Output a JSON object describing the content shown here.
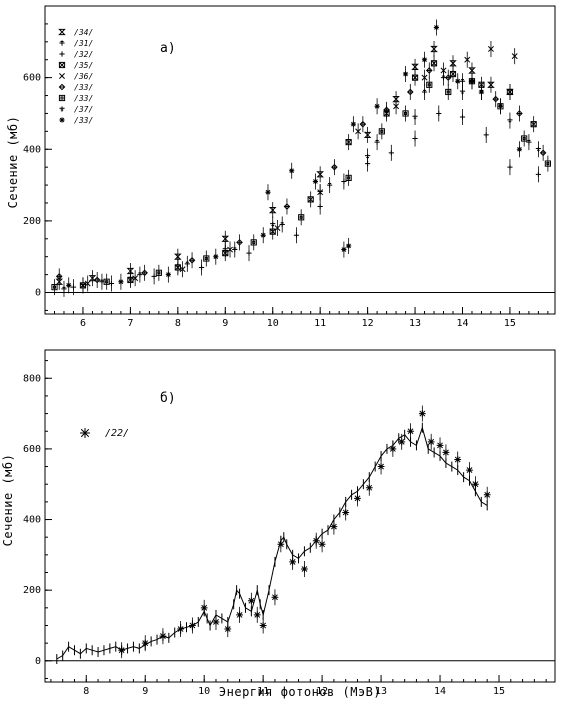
{
  "chart_data": [
    {
      "type": "scatter",
      "panel_label": "а)",
      "ylabel": "Сечение (мб)",
      "xlabel": "",
      "xlim": [
        5.2,
        15.95
      ],
      "ylim": [
        -60,
        800
      ],
      "x_ticks": [
        6,
        7,
        8,
        9,
        10,
        11,
        12,
        13,
        14,
        15
      ],
      "y_ticks": [
        0,
        200,
        400,
        600
      ],
      "grid": false,
      "legend_position": "top-left",
      "series": [
        {
          "name": "/34/",
          "marker": "hourglass",
          "x": [
            5.5,
            6.2,
            7.0,
            8.0,
            9.0,
            10.0,
            11.0,
            12.0,
            12.6,
            13.0,
            13.4,
            13.8,
            14.2,
            14.6,
            15.0
          ],
          "y": [
            30,
            40,
            60,
            100,
            150,
            230,
            330,
            440,
            540,
            630,
            680,
            640,
            620,
            580,
            560
          ]
        },
        {
          "name": "/31/",
          "marker": "plus-bar",
          "x": [
            5.6,
            6.4,
            7.2,
            8.2,
            9.2,
            10.2,
            11.2,
            12.2,
            13.2,
            13.6,
            14.0,
            14.4,
            14.8,
            15.4
          ],
          "y": [
            10,
            30,
            50,
            80,
            120,
            190,
            300,
            420,
            560,
            600,
            590,
            560,
            520,
            420
          ]
        },
        {
          "name": "/32/",
          "marker": "plus",
          "x": [
            5.8,
            6.6,
            7.5,
            8.5,
            9.5,
            10.5,
            11.0,
            11.5,
            12.0,
            12.5,
            13.0,
            13.5,
            14.0,
            14.5,
            15.0,
            15.6
          ],
          "y": [
            15,
            25,
            45,
            70,
            110,
            160,
            240,
            310,
            360,
            390,
            430,
            500,
            490,
            440,
            350,
            330
          ]
        },
        {
          "name": "/35/",
          "marker": "box-x",
          "x": [
            6.0,
            7.0,
            8.0,
            9.0,
            10.0,
            10.8,
            11.6,
            12.4,
            13.0,
            13.4,
            13.8,
            14.4,
            15.0,
            15.5
          ],
          "y": [
            20,
            35,
            70,
            110,
            170,
            260,
            420,
            500,
            600,
            640,
            610,
            580,
            560,
            470
          ]
        },
        {
          "name": "/36/",
          "marker": "x",
          "x": [
            6.1,
            7.1,
            8.1,
            9.1,
            10.1,
            11.0,
            11.8,
            12.6,
            13.2,
            13.6,
            14.1,
            14.6,
            15.1
          ],
          "y": [
            25,
            40,
            65,
            120,
            180,
            280,
            450,
            520,
            600,
            620,
            650,
            680,
            660
          ]
        },
        {
          "name": "/33/",
          "marker": "diamond",
          "x": [
            5.5,
            6.3,
            7.3,
            8.3,
            9.3,
            10.3,
            11.3,
            11.9,
            12.4,
            12.9,
            13.3,
            13.7,
            14.2,
            14.7,
            15.2,
            15.7
          ],
          "y": [
            45,
            35,
            55,
            90,
            140,
            240,
            350,
            470,
            510,
            560,
            620,
            600,
            590,
            540,
            500,
            390
          ]
        },
        {
          "name": "/33/",
          "marker": "square",
          "x": [
            5.4,
            6.5,
            7.6,
            8.6,
            9.6,
            10.6,
            11.6,
            12.3,
            12.8,
            13.3,
            13.7,
            14.2,
            14.8,
            15.3,
            15.8
          ],
          "y": [
            15,
            30,
            55,
            95,
            140,
            210,
            320,
            450,
            500,
            580,
            560,
            590,
            520,
            430,
            360
          ]
        },
        {
          "name": "/37/",
          "marker": "cross-bar",
          "x": [
            6.0,
            7.0,
            8.0,
            9.0,
            10.0,
            11.0,
            12.0,
            13.0,
            14.0,
            15.0,
            15.6
          ],
          "y": [
            20,
            40,
            75,
            120,
            190,
            280,
            380,
            490,
            560,
            480,
            400
          ]
        },
        {
          "name": "/33/",
          "marker": "asterisk",
          "x": [
            5.7,
            6.8,
            7.8,
            8.8,
            9.8,
            9.9,
            10.4,
            10.9,
            11.5,
            11.6,
            11.7,
            12.2,
            12.8,
            13.2,
            13.45,
            13.9,
            14.4,
            15.2
          ],
          "y": [
            20,
            30,
            50,
            100,
            160,
            280,
            340,
            310,
            120,
            130,
            470,
            520,
            610,
            650,
            740,
            590,
            560,
            400
          ]
        }
      ]
    },
    {
      "type": "line",
      "panel_label": "б)",
      "ylabel": "Сечение (мб)",
      "xlabel": "Энергия фотонов (МэВ)",
      "xlim": [
        7.3,
        15.95
      ],
      "ylim": [
        -60,
        880
      ],
      "x_ticks": [
        8,
        9,
        10,
        11,
        12,
        13,
        14,
        15
      ],
      "y_ticks": [
        0,
        200,
        400,
        600,
        800
      ],
      "grid": false,
      "legend_position": "top-left",
      "series": [
        {
          "name": "/22/",
          "marker": "asterisk",
          "x": [
            8.6,
            9.0,
            9.3,
            9.6,
            9.8,
            10.0,
            10.2,
            10.4,
            10.6,
            10.8,
            10.9,
            11.0,
            11.2,
            11.3,
            11.5,
            11.7,
            11.9,
            12.0,
            12.2,
            12.4,
            12.6,
            12.8,
            13.0,
            13.2,
            13.35,
            13.5,
            13.7,
            13.85,
            14.0,
            14.1,
            14.3,
            14.5,
            14.6,
            14.8
          ],
          "y": [
            30,
            50,
            70,
            90,
            100,
            150,
            110,
            90,
            130,
            170,
            130,
            100,
            180,
            330,
            280,
            260,
            340,
            330,
            380,
            420,
            460,
            490,
            550,
            600,
            620,
            650,
            700,
            620,
            610,
            590,
            570,
            540,
            500,
            470
          ]
        },
        {
          "name": "",
          "marker": "line-errorbar",
          "x": [
            7.5,
            7.6,
            7.7,
            7.8,
            7.9,
            8.0,
            8.1,
            8.2,
            8.3,
            8.4,
            8.5,
            8.6,
            8.7,
            8.8,
            8.9,
            9.0,
            9.1,
            9.2,
            9.3,
            9.4,
            9.5,
            9.6,
            9.7,
            9.8,
            9.9,
            10.0,
            10.05,
            10.1,
            10.2,
            10.3,
            10.4,
            10.5,
            10.55,
            10.6,
            10.7,
            10.8,
            10.9,
            10.95,
            11.0,
            11.1,
            11.2,
            11.3,
            11.35,
            11.4,
            11.5,
            11.6,
            11.7,
            11.8,
            11.9,
            12.0,
            12.1,
            12.2,
            12.3,
            12.4,
            12.5,
            12.6,
            12.7,
            12.8,
            12.9,
            13.0,
            13.1,
            13.2,
            13.3,
            13.4,
            13.5,
            13.6,
            13.7,
            13.8,
            13.9,
            14.0,
            14.1,
            14.2,
            14.3,
            14.4,
            14.5,
            14.6,
            14.7,
            14.8
          ],
          "y": [
            5,
            15,
            40,
            30,
            20,
            35,
            30,
            25,
            30,
            35,
            40,
            30,
            35,
            40,
            35,
            45,
            55,
            60,
            70,
            65,
            80,
            90,
            95,
            100,
            110,
            140,
            120,
            100,
            130,
            120,
            110,
            160,
            200,
            190,
            150,
            140,
            200,
            160,
            130,
            200,
            280,
            340,
            350,
            330,
            300,
            290,
            310,
            320,
            340,
            360,
            370,
            400,
            420,
            450,
            470,
            480,
            500,
            520,
            550,
            580,
            600,
            610,
            630,
            640,
            620,
            610,
            660,
            600,
            590,
            580,
            560,
            550,
            540,
            520,
            510,
            480,
            450,
            440
          ]
        }
      ]
    }
  ]
}
